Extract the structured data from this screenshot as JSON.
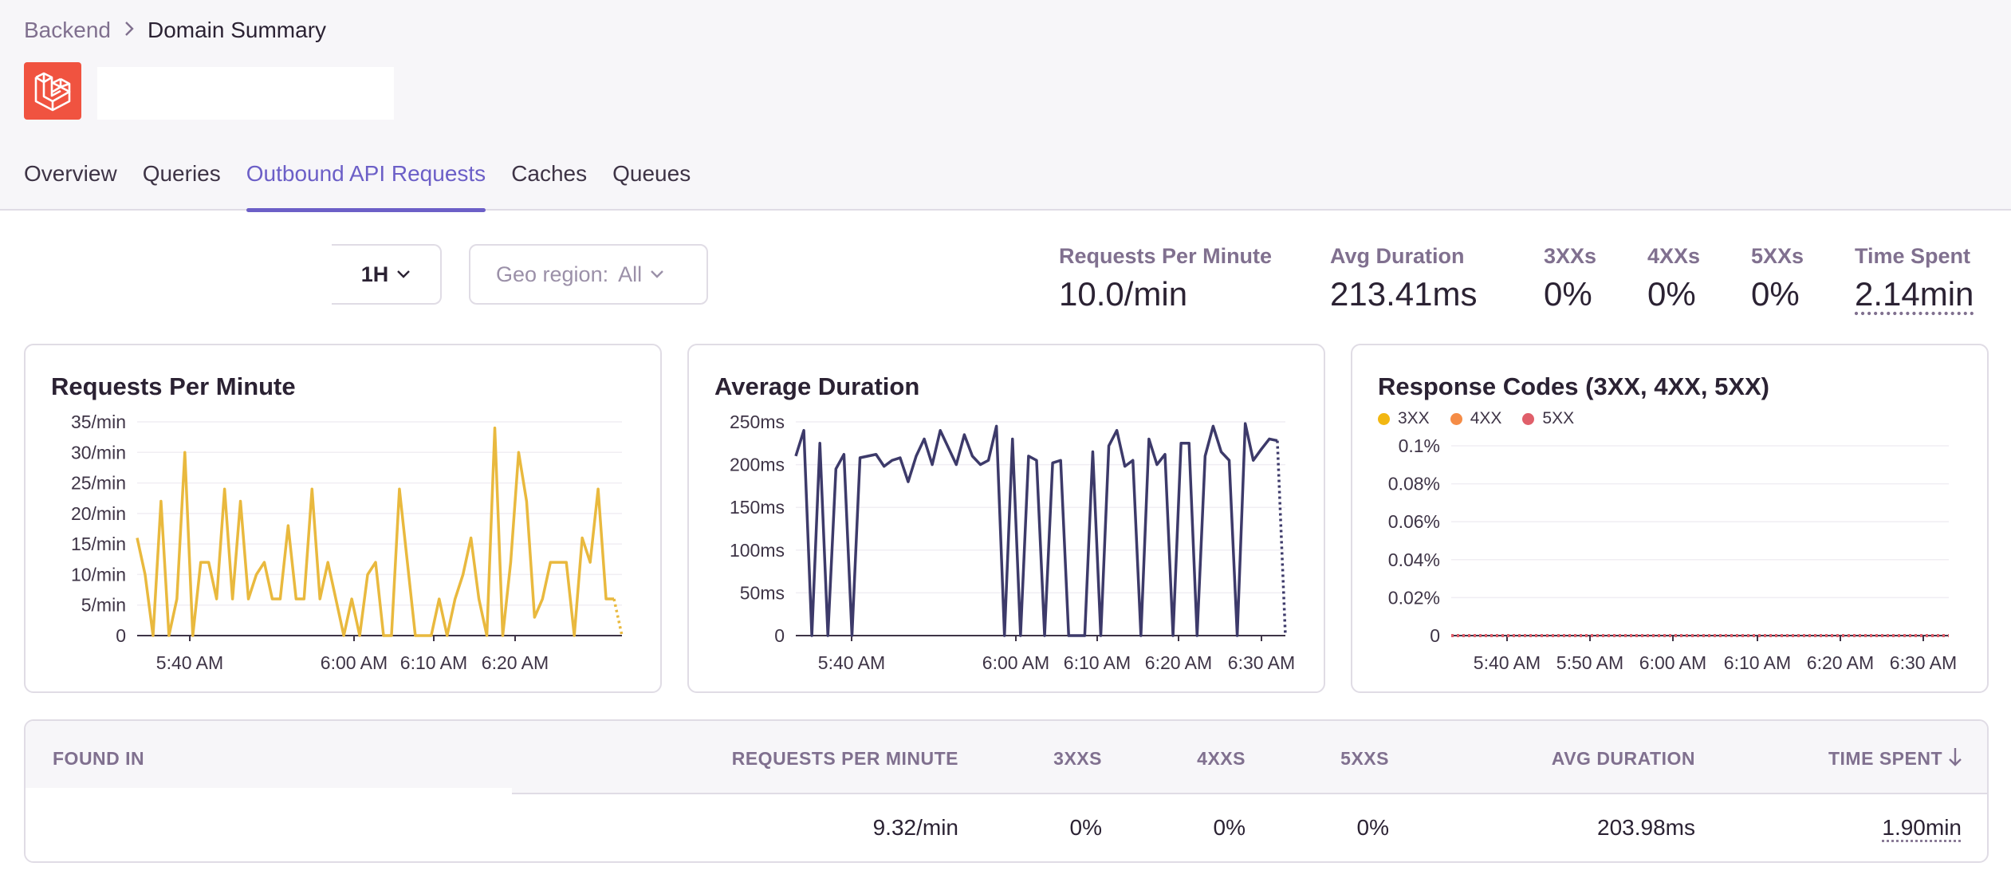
{
  "breadcrumb": {
    "parent": "Backend",
    "current": "Domain Summary"
  },
  "tabs": [
    "Overview",
    "Queries",
    "Outbound API Requests",
    "Caches",
    "Queues"
  ],
  "active_tab": "Outbound API Requests",
  "filters": {
    "period": "1H",
    "geo_label": "Geo region:",
    "geo_value": "All"
  },
  "metrics": [
    {
      "label": "Requests Per Minute",
      "value": "10.0/min"
    },
    {
      "label": "Avg Duration",
      "value": "213.41ms"
    },
    {
      "label": "3XXs",
      "value": "0%"
    },
    {
      "label": "4XXs",
      "value": "0%"
    },
    {
      "label": "5XXs",
      "value": "0%"
    },
    {
      "label": "Time Spent",
      "value": "2.14min"
    }
  ],
  "colors": {
    "accent": "#6c5fc7",
    "rpm_line": "#e9b93e",
    "duration_line": "#3d3a6a",
    "c3xx": "#f2b712",
    "c4xx": "#f58c46",
    "c5xx": "#e05f6a",
    "logo_bg": "#f05340"
  },
  "chart_data": [
    {
      "type": "line",
      "title": "Requests Per Minute",
      "ylabel": "",
      "ylim": [
        0,
        35
      ],
      "y_ticks": [
        "35/min",
        "30/min",
        "25/min",
        "20/min",
        "15/min",
        "10/min",
        "5/min",
        "0"
      ],
      "x_ticks": [
        "5:40 AM",
        "6:00 AM",
        "6:10 AM",
        "6:20 AM"
      ],
      "series": [
        {
          "values": [
            16,
            10,
            0,
            22,
            0,
            6,
            30,
            0,
            12,
            12,
            6,
            24,
            6,
            22,
            6,
            10,
            12,
            6,
            6,
            18,
            6,
            6,
            24,
            6,
            12,
            6,
            0,
            6,
            0,
            10,
            12,
            0,
            0,
            24,
            12,
            0,
            0,
            0,
            6,
            0,
            6,
            10,
            16,
            6,
            0,
            34,
            0,
            12,
            30,
            22,
            3,
            6,
            12,
            12,
            12,
            0,
            16,
            12,
            24,
            6,
            6,
            0
          ]
        }
      ]
    },
    {
      "type": "line",
      "title": "Average Duration",
      "ylabel": "",
      "ylim": [
        0,
        250
      ],
      "y_ticks": [
        "250ms",
        "200ms",
        "150ms",
        "100ms",
        "50ms",
        "0"
      ],
      "x_ticks": [
        "5:40 AM",
        "6:00 AM",
        "6:10 AM",
        "6:20 AM",
        "6:30 AM"
      ],
      "series": [
        {
          "values": [
            210,
            240,
            0,
            225,
            0,
            195,
            212,
            0,
            208,
            210,
            212,
            198,
            205,
            208,
            180,
            210,
            230,
            200,
            240,
            220,
            200,
            235,
            210,
            200,
            205,
            245,
            0,
            230,
            0,
            210,
            205,
            0,
            202,
            205,
            0,
            0,
            0,
            215,
            0,
            222,
            240,
            198,
            205,
            0,
            230,
            200,
            212,
            0,
            225,
            225,
            0,
            210,
            245,
            215,
            205,
            0,
            248,
            205,
            218,
            230,
            228,
            0
          ]
        }
      ]
    },
    {
      "type": "line",
      "title": "Response Codes (3XX, 4XX, 5XX)",
      "ylabel": "",
      "ylim": [
        0,
        0.1
      ],
      "y_ticks": [
        "0.1%",
        "0.08%",
        "0.06%",
        "0.04%",
        "0.02%",
        "0"
      ],
      "x_ticks": [
        "5:40 AM",
        "5:50 AM",
        "6:00 AM",
        "6:10 AM",
        "6:20 AM",
        "6:30 AM"
      ],
      "legend": [
        "3XX",
        "4XX",
        "5XX"
      ],
      "series": [
        {
          "name": "3XX",
          "values": [
            0,
            0
          ]
        },
        {
          "name": "4XX",
          "values": [
            0,
            0
          ]
        },
        {
          "name": "5XX",
          "values": [
            0,
            0
          ]
        }
      ]
    }
  ],
  "table": {
    "headers": [
      "FOUND IN",
      "REQUESTS PER MINUTE",
      "3XXS",
      "4XXS",
      "5XXS",
      "AVG DURATION",
      "TIME SPENT"
    ],
    "sort_icon": "arrow-down-icon",
    "rows": [
      {
        "rpm": "9.32/min",
        "c3xx": "0%",
        "c4xx": "0%",
        "c5xx": "0%",
        "avg": "203.98ms",
        "time": "1.90min"
      }
    ]
  }
}
